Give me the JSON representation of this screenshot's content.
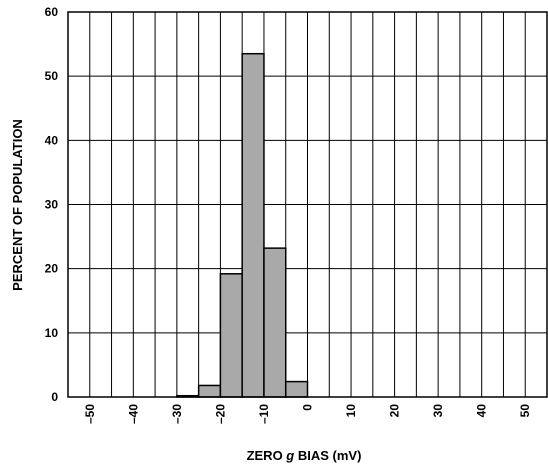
{
  "chart_data": {
    "type": "bar",
    "title": "",
    "xlabel_parts": [
      "ZERO ",
      "g",
      " BIAS (mV)"
    ],
    "ylabel": "PERCENT OF POPULATION",
    "x_ticks": [
      "–50",
      "–40",
      "–30",
      "–20",
      "–10",
      "0",
      "10",
      "20",
      "30",
      "40",
      "50"
    ],
    "y_ticks": [
      "0",
      "10",
      "20",
      "30",
      "40",
      "50",
      "60"
    ],
    "xlim": [
      -55,
      55
    ],
    "ylim": [
      0,
      60
    ],
    "grid": true,
    "bar_color": "#a9a9a9",
    "bins": [
      {
        "x0": -30,
        "x1": -25,
        "value": 0.2
      },
      {
        "x0": -25,
        "x1": -20,
        "value": 1.8
      },
      {
        "x0": -20,
        "x1": -15,
        "value": 19.2
      },
      {
        "x0": -15,
        "x1": -10,
        "value": 53.5
      },
      {
        "x0": -10,
        "x1": -5,
        "value": 23.2
      },
      {
        "x0": -5,
        "x1": 0,
        "value": 2.4
      }
    ]
  }
}
